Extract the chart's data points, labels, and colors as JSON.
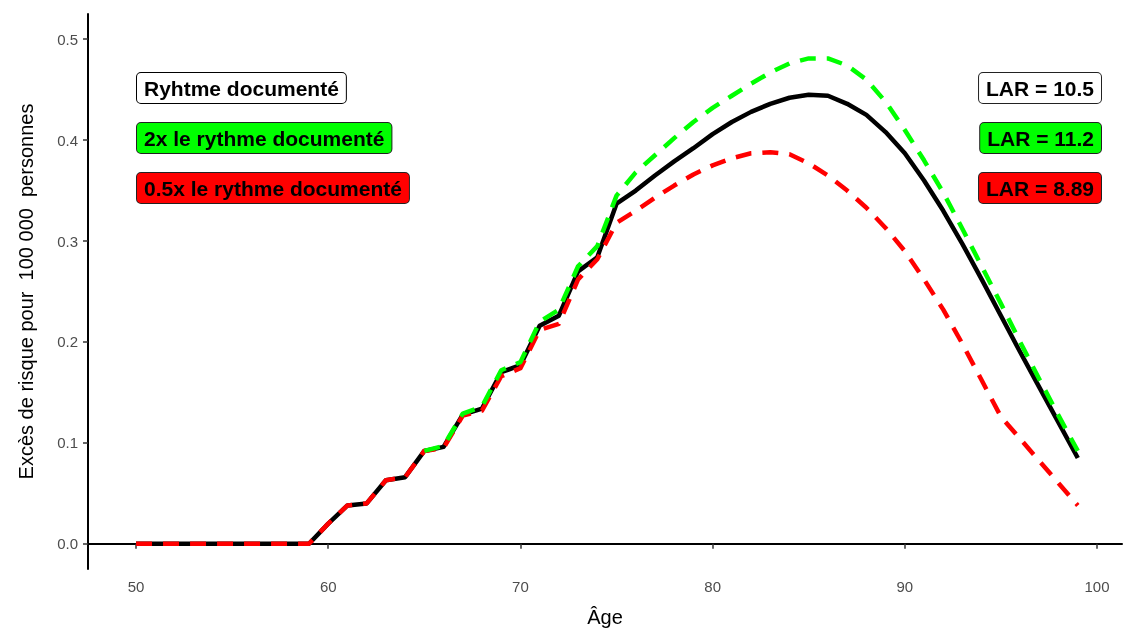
{
  "chart_data": {
    "type": "line",
    "xlabel": "Âge",
    "ylabel": "Excès de risque pour  100 000  personnes",
    "x": [
      50,
      51,
      52,
      53,
      54,
      55,
      56,
      57,
      58,
      59,
      60,
      61,
      62,
      63,
      64,
      65,
      66,
      67,
      68,
      69,
      70,
      71,
      72,
      73,
      74,
      75,
      76,
      77,
      78,
      79,
      80,
      81,
      82,
      83,
      84,
      85,
      86,
      87,
      88,
      89,
      90,
      91,
      92,
      93,
      94,
      95,
      96,
      97,
      98,
      99
    ],
    "series": [
      {
        "name": "Ryhtme documenté",
        "color": "#000000",
        "line_style": "solid",
        "values": [
          0,
          0,
          0,
          0,
          0,
          0,
          0,
          0,
          0,
          0,
          0.02,
          0.038,
          0.04,
          0.063,
          0.066,
          0.092,
          0.096,
          0.128,
          0.134,
          0.17,
          0.177,
          0.216,
          0.226,
          0.27,
          0.284,
          0.337,
          0.35,
          0.365,
          0.379,
          0.392,
          0.406,
          0.418,
          0.428,
          0.436,
          0.442,
          0.445,
          0.444,
          0.436,
          0.425,
          0.408,
          0.387,
          0.36,
          0.33,
          0.297,
          0.262,
          0.226,
          0.19,
          0.155,
          0.12,
          0.085
        ]
      },
      {
        "name": "2x le rythme documenté",
        "color": "#00ff00",
        "line_style": "dashed",
        "values": [
          null,
          null,
          null,
          null,
          null,
          null,
          null,
          null,
          null,
          null,
          null,
          null,
          null,
          null,
          null,
          0.092,
          0.097,
          0.129,
          0.136,
          0.172,
          0.18,
          0.22,
          0.232,
          0.275,
          0.295,
          0.345,
          0.368,
          0.385,
          0.402,
          0.418,
          0.432,
          0.444,
          0.456,
          0.467,
          0.476,
          0.481,
          0.481,
          0.474,
          0.46,
          0.438,
          0.41,
          0.38,
          0.348,
          0.312,
          0.275,
          0.238,
          0.2,
          0.163,
          0.127,
          0.092
        ]
      },
      {
        "name": "0.5x le rythme documenté",
        "color": "#ff0000",
        "line_style": "dashed",
        "values": [
          0,
          0,
          0,
          0,
          0,
          0,
          0,
          0,
          0,
          0,
          0.02,
          0.038,
          0.04,
          0.063,
          0.066,
          0.092,
          0.095,
          0.127,
          0.132,
          0.166,
          0.174,
          0.212,
          0.218,
          0.262,
          0.282,
          0.318,
          0.33,
          0.343,
          0.355,
          0.366,
          0.375,
          0.382,
          0.387,
          0.388,
          0.386,
          0.377,
          0.365,
          0.35,
          0.333,
          0.313,
          0.29,
          0.262,
          0.232,
          0.198,
          0.162,
          0.126,
          0.104,
          0.082,
          0.06,
          0.038
        ]
      }
    ],
    "annotations": [
      "LAR = 10.5",
      "LAR = 11.2",
      "LAR = 8.89"
    ],
    "xlim": [
      47.5,
      101.3
    ],
    "xticks": [
      50,
      60,
      70,
      80,
      90,
      100
    ],
    "ylim": [
      -0.025,
      0.525
    ],
    "yticks": [
      {
        "value": 0,
        "label": "0.0"
      },
      {
        "value": 0.1,
        "label": "0.1"
      },
      {
        "value": 0.2,
        "label": "0.2"
      },
      {
        "value": 0.3,
        "label": "0.3"
      },
      {
        "value": 0.4,
        "label": "0.4"
      },
      {
        "value": 0.5,
        "label": "0.5"
      }
    ],
    "grid": false,
    "legend": "top left",
    "marker": "none"
  }
}
